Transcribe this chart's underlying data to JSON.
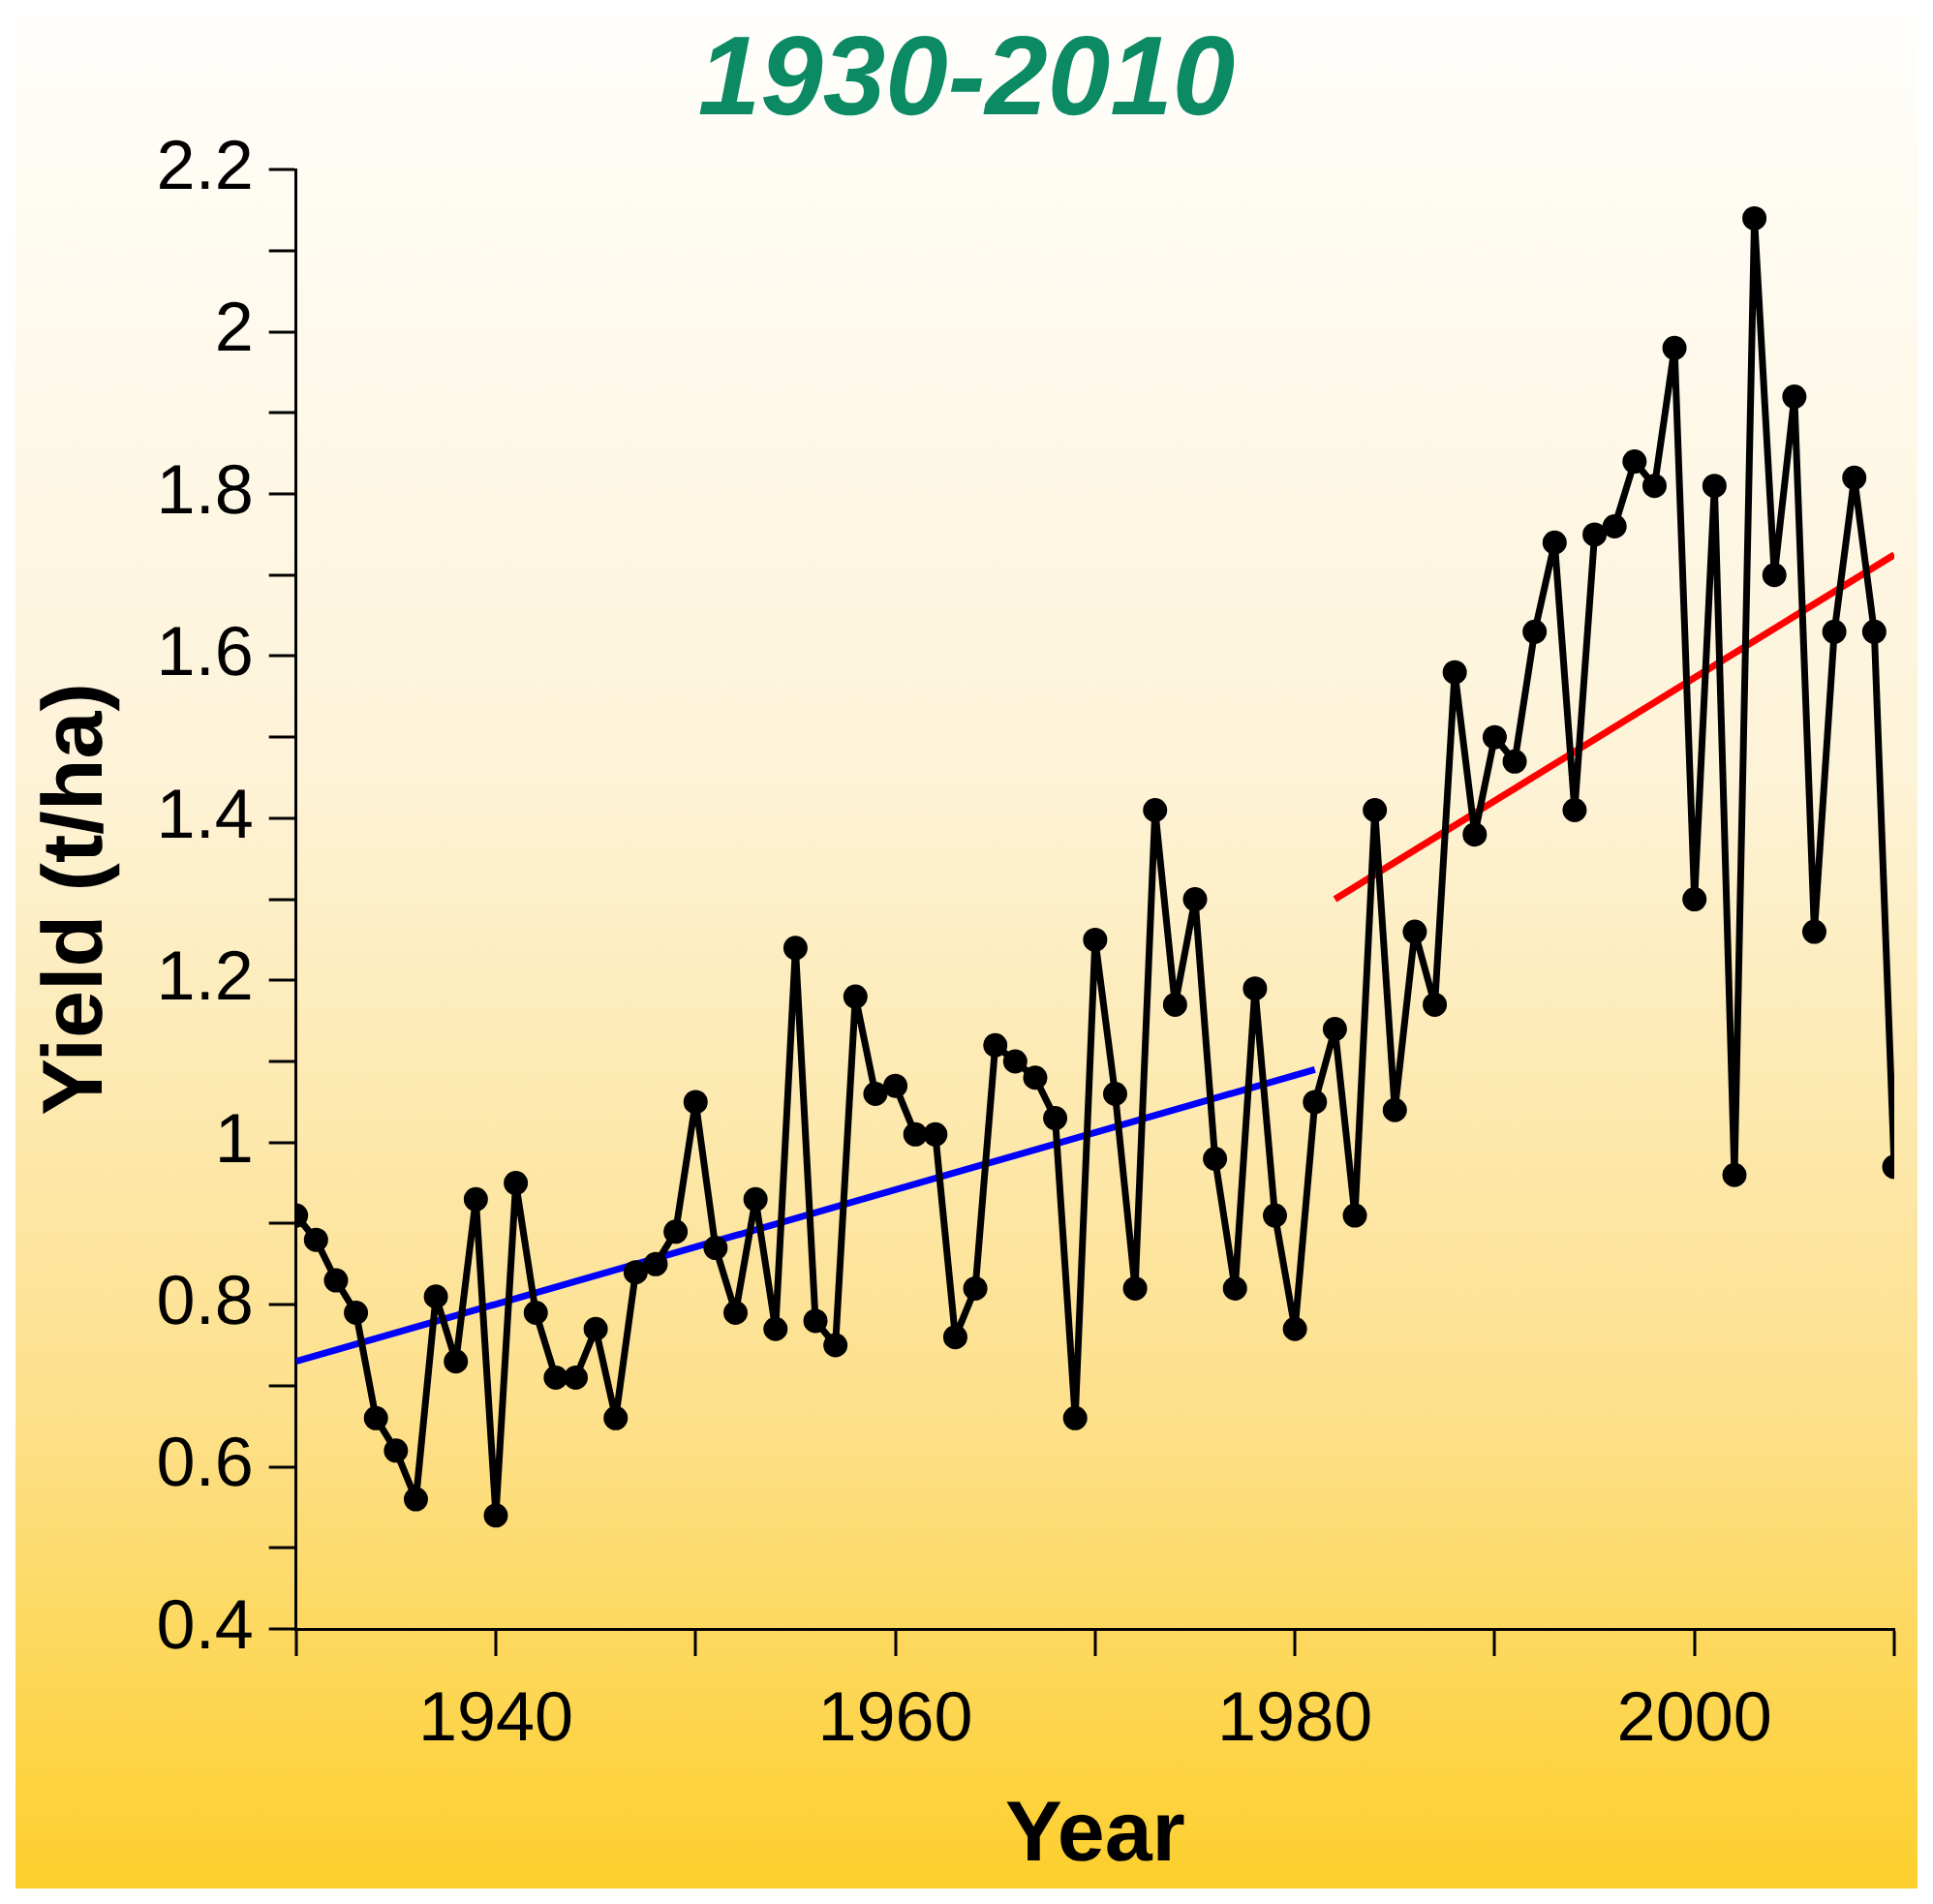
{
  "chart_data": {
    "type": "line",
    "title": "1930-2010",
    "xlabel": "Year",
    "ylabel": "Yield (t/ha)",
    "xlim": [
      1930,
      2010
    ],
    "ylim": [
      0.4,
      2.2
    ],
    "xticks": [
      {
        "value": 1930,
        "label": null
      },
      1940,
      {
        "value": 1950,
        "label": null
      },
      1960,
      {
        "value": 1970,
        "label": null
      },
      1980,
      {
        "value": 1990,
        "label": null
      },
      2000,
      {
        "value": 2010,
        "label": null
      }
    ],
    "yticks": [
      0.4,
      {
        "value": 0.5,
        "label": null
      },
      0.6,
      {
        "value": 0.7,
        "label": null
      },
      0.8,
      {
        "value": 0.9,
        "label": null
      },
      1,
      {
        "value": 1.1,
        "label": null
      },
      1.2,
      {
        "value": 1.3,
        "label": null
      },
      1.4,
      {
        "value": 1.5,
        "label": null
      },
      1.6,
      {
        "value": 1.7,
        "label": null
      },
      1.8,
      {
        "value": 1.9,
        "label": null
      },
      2,
      {
        "value": 2.1,
        "label": null
      },
      2.2
    ],
    "grid": false,
    "legend": false,
    "marker": "circle",
    "line_style": "solid",
    "series": [
      {
        "color": "#000000",
        "x": [
          1930,
          1931,
          1932,
          1933,
          1934,
          1935,
          1936,
          1937,
          1938,
          1939,
          1940,
          1941,
          1942,
          1943,
          1944,
          1945,
          1946,
          1947,
          1948,
          1949,
          1950,
          1951,
          1952,
          1953,
          1954,
          1955,
          1956,
          1957,
          1958,
          1959,
          1960,
          1961,
          1962,
          1963,
          1964,
          1965,
          1966,
          1967,
          1968,
          1969,
          1970,
          1971,
          1972,
          1973,
          1974,
          1975,
          1976,
          1977,
          1978,
          1979,
          1980,
          1981,
          1982,
          1983,
          1984,
          1985,
          1986,
          1987,
          1988,
          1989,
          1990,
          1991,
          1992,
          1993,
          1994,
          1995,
          1996,
          1997,
          1998,
          1999,
          2000,
          2001,
          2002,
          2003,
          2004,
          2005,
          2006,
          2007,
          2008,
          2009,
          2010
        ],
        "values": [
          0.91,
          0.88,
          0.83,
          0.79,
          0.66,
          0.62,
          0.56,
          0.81,
          0.73,
          0.93,
          0.54,
          0.95,
          0.79,
          0.71,
          0.71,
          0.77,
          0.66,
          0.84,
          0.85,
          0.89,
          1.05,
          0.87,
          0.79,
          0.93,
          0.77,
          1.24,
          0.78,
          0.75,
          1.18,
          1.06,
          1.07,
          1.01,
          1.01,
          0.76,
          0.82,
          1.12,
          1.1,
          1.08,
          1.03,
          0.66,
          1.25,
          1.06,
          0.82,
          1.41,
          1.17,
          1.3,
          0.98,
          0.82,
          1.19,
          0.91,
          0.77,
          1.05,
          1.14,
          0.91,
          1.41,
          1.04,
          1.26,
          1.17,
          1.58,
          1.38,
          1.5,
          1.47,
          1.63,
          1.74,
          1.41,
          1.75,
          1.76,
          1.84,
          1.81,
          1.98,
          1.3,
          1.81,
          0.96,
          2.14,
          1.7,
          1.92,
          1.26,
          1.63,
          1.82,
          1.63,
          0.97
        ]
      },
      {
        "type": "line",
        "color": "#0000ff",
        "marker": "none",
        "x": [
          1930,
          1981
        ],
        "values": [
          0.73,
          1.09
        ]
      },
      {
        "type": "line",
        "color": "#ff0000",
        "marker": "none",
        "x": [
          1982,
          2010
        ],
        "values": [
          1.3,
          1.725
        ]
      }
    ]
  }
}
